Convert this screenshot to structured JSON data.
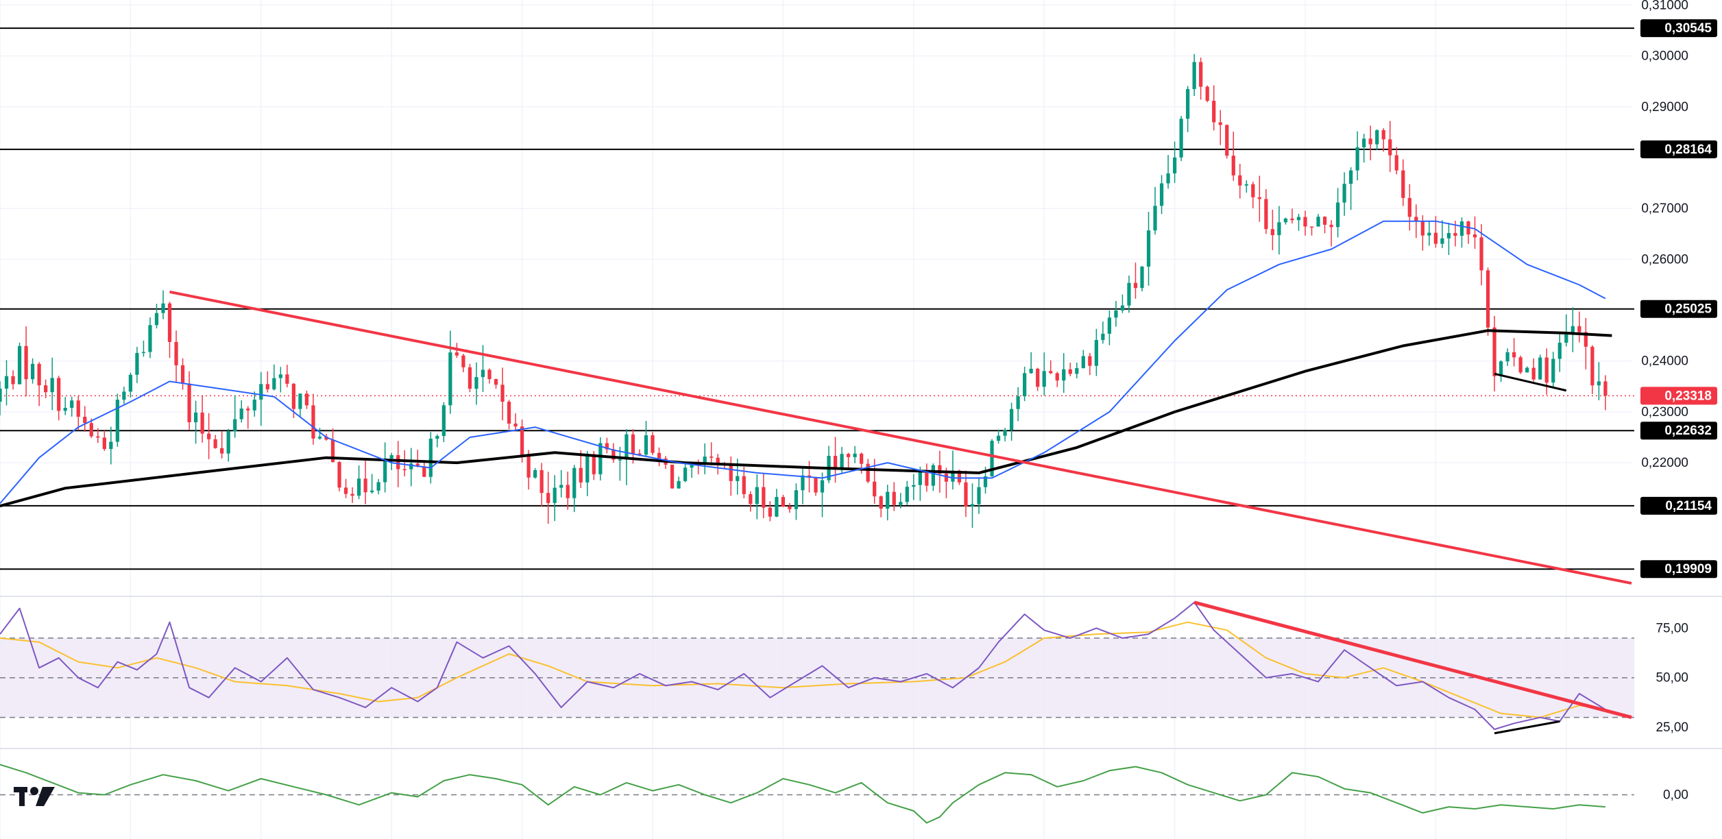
{
  "colors": {
    "up": "#089981",
    "down": "#f23645",
    "ma_short": "#2962ff",
    "ma_long": "#000000",
    "trendline": "#f23645",
    "rsi_line": "#7e57c2",
    "rsi_ma": "#fbc02d",
    "rsi_band": "#ede7f6",
    "macd_line": "#43a047",
    "level_line": "#000000",
    "last_price_bg": "#f23645"
  },
  "logo": {
    "name": "tradingview-logo",
    "text": "17"
  },
  "chart_data": [
    {
      "type": "candlestick",
      "panel": "price",
      "y_axis": {
        "ticks": [
          "0,31000",
          "0,30000",
          "0,29000",
          "0,27000",
          "0,26000",
          "0,24000",
          "0,23000",
          "0,22000"
        ],
        "tick_values": [
          0.31,
          0.3,
          0.29,
          0.27,
          0.26,
          0.24,
          0.23,
          0.22
        ],
        "range": [
          0.194,
          0.311
        ]
      },
      "x_range": [
        0,
        250
      ],
      "grid": true,
      "last_price": {
        "label": "0,23318",
        "value": 0.23318
      },
      "levels": [
        {
          "label": "0,30545",
          "value": 0.30545
        },
        {
          "label": "0,28164",
          "value": 0.28164
        },
        {
          "label": "0,25025",
          "value": 0.25025
        },
        {
          "label": "0,22632",
          "value": 0.22632
        },
        {
          "label": "0,21154",
          "value": 0.21154
        },
        {
          "label": "0,19909",
          "value": 0.19909
        }
      ],
      "trendlines": [
        {
          "color": "down",
          "points": [
            [
              26,
              0.2536
            ],
            [
              250,
              0.1963
            ]
          ]
        },
        {
          "color": "ma_long",
          "points": [
            [
              229,
              0.2375
            ],
            [
              240,
              0.2342
            ]
          ]
        }
      ],
      "anchors": [
        [
          0,
          0.232
        ],
        [
          4,
          0.24
        ],
        [
          8,
          0.236
        ],
        [
          12,
          0.23
        ],
        [
          17,
          0.223
        ],
        [
          22,
          0.24
        ],
        [
          26,
          0.253
        ],
        [
          30,
          0.228
        ],
        [
          35,
          0.224
        ],
        [
          42,
          0.237
        ],
        [
          47,
          0.232
        ],
        [
          52,
          0.219
        ],
        [
          56,
          0.214
        ],
        [
          60,
          0.22
        ],
        [
          66,
          0.216
        ],
        [
          70,
          0.24
        ],
        [
          76,
          0.235
        ],
        [
          80,
          0.226
        ],
        [
          84,
          0.213
        ],
        [
          89,
          0.216
        ],
        [
          93,
          0.222
        ],
        [
          99,
          0.224
        ],
        [
          105,
          0.216
        ],
        [
          110,
          0.219
        ],
        [
          116,
          0.213
        ],
        [
          121,
          0.212
        ],
        [
          126,
          0.217
        ],
        [
          131,
          0.222
        ],
        [
          136,
          0.213
        ],
        [
          140,
          0.216
        ],
        [
          145,
          0.219
        ],
        [
          150,
          0.213
        ],
        [
          153,
          0.224
        ],
        [
          158,
          0.236
        ],
        [
          163,
          0.238
        ],
        [
          167,
          0.24
        ],
        [
          171,
          0.248
        ],
        [
          175,
          0.255
        ],
        [
          178,
          0.268
        ],
        [
          182,
          0.285
        ],
        [
          184,
          0.3
        ],
        [
          187,
          0.289
        ],
        [
          191,
          0.276
        ],
        [
          195,
          0.268
        ],
        [
          200,
          0.266
        ],
        [
          205,
          0.268
        ],
        [
          208,
          0.28
        ],
        [
          212,
          0.286
        ],
        [
          216,
          0.272
        ],
        [
          220,
          0.264
        ],
        [
          225,
          0.268
        ],
        [
          228,
          0.26
        ],
        [
          230,
          0.238
        ],
        [
          234,
          0.24
        ],
        [
          238,
          0.238
        ],
        [
          242,
          0.246
        ],
        [
          244,
          0.242
        ],
        [
          246,
          0.2332
        ]
      ],
      "ma_short": [
        [
          0,
          0.212
        ],
        [
          6,
          0.221
        ],
        [
          12,
          0.227
        ],
        [
          20,
          0.232
        ],
        [
          26,
          0.236
        ],
        [
          34,
          0.2345
        ],
        [
          42,
          0.233
        ],
        [
          50,
          0.225
        ],
        [
          60,
          0.22
        ],
        [
          66,
          0.219
        ],
        [
          72,
          0.225
        ],
        [
          82,
          0.227
        ],
        [
          94,
          0.2225
        ],
        [
          104,
          0.22
        ],
        [
          116,
          0.218
        ],
        [
          126,
          0.217
        ],
        [
          136,
          0.22
        ],
        [
          146,
          0.217
        ],
        [
          152,
          0.217
        ],
        [
          160,
          0.222
        ],
        [
          170,
          0.23
        ],
        [
          180,
          0.244
        ],
        [
          188,
          0.254
        ],
        [
          196,
          0.259
        ],
        [
          204,
          0.262
        ],
        [
          212,
          0.2675
        ],
        [
          220,
          0.2675
        ],
        [
          226,
          0.266
        ],
        [
          234,
          0.259
        ],
        [
          242,
          0.255
        ],
        [
          246,
          0.2523
        ]
      ],
      "ma_long": [
        [
          0,
          0.2115
        ],
        [
          10,
          0.215
        ],
        [
          30,
          0.218
        ],
        [
          50,
          0.221
        ],
        [
          70,
          0.22
        ],
        [
          85,
          0.222
        ],
        [
          105,
          0.22
        ],
        [
          125,
          0.219
        ],
        [
          150,
          0.218
        ],
        [
          165,
          0.223
        ],
        [
          180,
          0.23
        ],
        [
          200,
          0.238
        ],
        [
          215,
          0.243
        ],
        [
          228,
          0.246
        ],
        [
          240,
          0.2455
        ],
        [
          247,
          0.245
        ]
      ]
    },
    {
      "type": "line",
      "panel": "rsi",
      "y_axis": {
        "ticks": [
          "75,00",
          "50,00",
          "25,00"
        ],
        "tick_values": [
          75,
          50,
          25
        ],
        "range": [
          15,
          90
        ]
      },
      "band": [
        30,
        70
      ],
      "rsi": [
        [
          0,
          72
        ],
        [
          3,
          85
        ],
        [
          6,
          55
        ],
        [
          9,
          60
        ],
        [
          12,
          50
        ],
        [
          15,
          45
        ],
        [
          18,
          58
        ],
        [
          21,
          54
        ],
        [
          24,
          62
        ],
        [
          26,
          78
        ],
        [
          29,
          45
        ],
        [
          32,
          40
        ],
        [
          36,
          55
        ],
        [
          40,
          48
        ],
        [
          44,
          60
        ],
        [
          48,
          44
        ],
        [
          52,
          40
        ],
        [
          56,
          35
        ],
        [
          60,
          45
        ],
        [
          64,
          38
        ],
        [
          67,
          45
        ],
        [
          70,
          68
        ],
        [
          74,
          60
        ],
        [
          78,
          66
        ],
        [
          82,
          52
        ],
        [
          86,
          35
        ],
        [
          90,
          48
        ],
        [
          94,
          45
        ],
        [
          98,
          52
        ],
        [
          102,
          46
        ],
        [
          106,
          48
        ],
        [
          110,
          44
        ],
        [
          114,
          52
        ],
        [
          118,
          40
        ],
        [
          122,
          48
        ],
        [
          126,
          56
        ],
        [
          130,
          45
        ],
        [
          134,
          50
        ],
        [
          138,
          48
        ],
        [
          142,
          52
        ],
        [
          146,
          45
        ],
        [
          150,
          55
        ],
        [
          153,
          68
        ],
        [
          157,
          82
        ],
        [
          160,
          74
        ],
        [
          164,
          70
        ],
        [
          168,
          75
        ],
        [
          172,
          70
        ],
        [
          176,
          72
        ],
        [
          180,
          80
        ],
        [
          183,
          88
        ],
        [
          186,
          74
        ],
        [
          190,
          62
        ],
        [
          194,
          50
        ],
        [
          198,
          52
        ],
        [
          202,
          48
        ],
        [
          206,
          64
        ],
        [
          210,
          55
        ],
        [
          214,
          46
        ],
        [
          218,
          48
        ],
        [
          222,
          40
        ],
        [
          226,
          34
        ],
        [
          229,
          24
        ],
        [
          232,
          27
        ],
        [
          236,
          30
        ],
        [
          239,
          28
        ],
        [
          242,
          42
        ],
        [
          246,
          34
        ]
      ],
      "rsi_ma": [
        [
          0,
          70
        ],
        [
          6,
          68
        ],
        [
          12,
          58
        ],
        [
          18,
          55
        ],
        [
          24,
          60
        ],
        [
          30,
          55
        ],
        [
          36,
          48
        ],
        [
          44,
          46
        ],
        [
          52,
          42
        ],
        [
          58,
          38
        ],
        [
          64,
          40
        ],
        [
          70,
          50
        ],
        [
          78,
          62
        ],
        [
          84,
          56
        ],
        [
          90,
          48
        ],
        [
          100,
          46
        ],
        [
          110,
          47
        ],
        [
          120,
          45
        ],
        [
          130,
          47
        ],
        [
          140,
          48
        ],
        [
          148,
          50
        ],
        [
          154,
          58
        ],
        [
          160,
          70
        ],
        [
          168,
          72
        ],
        [
          176,
          73
        ],
        [
          182,
          78
        ],
        [
          188,
          74
        ],
        [
          194,
          60
        ],
        [
          200,
          52
        ],
        [
          206,
          50
        ],
        [
          212,
          55
        ],
        [
          218,
          48
        ],
        [
          224,
          40
        ],
        [
          230,
          32
        ],
        [
          236,
          30
        ],
        [
          242,
          36
        ],
        [
          246,
          34
        ]
      ],
      "trendlines": [
        {
          "color": "down",
          "points": [
            [
              183,
              88
            ],
            [
              250,
              30
            ]
          ]
        },
        {
          "color": "ma_long",
          "points": [
            [
              229,
              22
            ],
            [
              239,
              28
            ]
          ]
        }
      ]
    },
    {
      "type": "line",
      "panel": "oscillator",
      "y_axis": {
        "ticks": [
          "0,00"
        ],
        "tick_values": [
          0
        ],
        "range": [
          -1.1,
          1.1
        ]
      },
      "osc": [
        [
          0,
          0.75
        ],
        [
          4,
          0.55
        ],
        [
          8,
          0.3
        ],
        [
          12,
          0.05
        ],
        [
          16,
          0.0
        ],
        [
          20,
          0.25
        ],
        [
          25,
          0.5
        ],
        [
          30,
          0.35
        ],
        [
          35,
          0.1
        ],
        [
          40,
          0.4
        ],
        [
          45,
          0.2
        ],
        [
          50,
          0.0
        ],
        [
          55,
          -0.25
        ],
        [
          60,
          0.05
        ],
        [
          64,
          -0.05
        ],
        [
          68,
          0.35
        ],
        [
          72,
          0.5
        ],
        [
          76,
          0.4
        ],
        [
          80,
          0.25
        ],
        [
          84,
          -0.25
        ],
        [
          88,
          0.2
        ],
        [
          92,
          0.0
        ],
        [
          96,
          0.3
        ],
        [
          100,
          0.1
        ],
        [
          104,
          0.25
        ],
        [
          108,
          0.0
        ],
        [
          112,
          -0.2
        ],
        [
          116,
          0.05
        ],
        [
          120,
          0.4
        ],
        [
          124,
          0.25
        ],
        [
          128,
          0.05
        ],
        [
          132,
          0.3
        ],
        [
          136,
          -0.2
        ],
        [
          140,
          -0.4
        ],
        [
          142,
          -0.7
        ],
        [
          144,
          -0.55
        ],
        [
          146,
          -0.2
        ],
        [
          150,
          0.25
        ],
        [
          154,
          0.55
        ],
        [
          158,
          0.5
        ],
        [
          162,
          0.2
        ],
        [
          166,
          0.35
        ],
        [
          170,
          0.6
        ],
        [
          174,
          0.7
        ],
        [
          178,
          0.55
        ],
        [
          182,
          0.25
        ],
        [
          186,
          0.05
        ],
        [
          190,
          -0.15
        ],
        [
          194,
          0.0
        ],
        [
          198,
          0.55
        ],
        [
          202,
          0.45
        ],
        [
          206,
          0.15
        ],
        [
          210,
          0.05
        ],
        [
          214,
          -0.2
        ],
        [
          218,
          -0.45
        ],
        [
          222,
          -0.3
        ],
        [
          226,
          -0.35
        ],
        [
          230,
          -0.25
        ],
        [
          234,
          -0.3
        ],
        [
          238,
          -0.35
        ],
        [
          242,
          -0.25
        ],
        [
          246,
          -0.3
        ]
      ]
    }
  ]
}
